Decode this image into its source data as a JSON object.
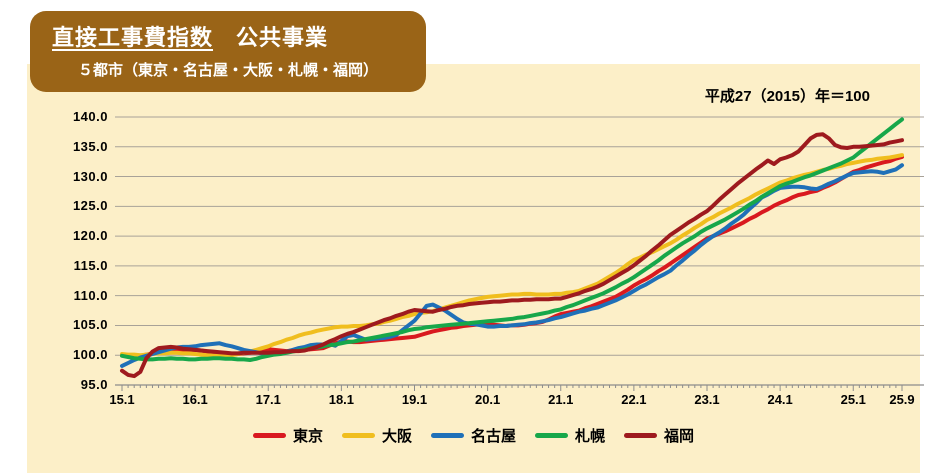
{
  "title": {
    "line1_underline": "直接工事費指数",
    "line1_rest": "　公共事業",
    "line2": "５都市（東京・名古屋・大阪・札幌・福岡）"
  },
  "note": "平成27（2015）年＝100",
  "colors": {
    "panel_background": "#fcefc8",
    "title_box": "#9a6417",
    "title_text": "#ffffff",
    "grid": "#a8a298",
    "axis": "#8c8c8c",
    "text": "#000000"
  },
  "chart_data": {
    "type": "line",
    "title": "直接工事費指数　公共事業",
    "note": "平成27（2015）年＝100",
    "ylim": [
      95,
      140
    ],
    "grid": true,
    "legend_position": "bottom",
    "y_ticks": [
      95,
      100,
      105,
      110,
      115,
      120,
      125,
      130,
      135,
      140
    ],
    "y_tick_labels": [
      "95.0",
      "100.0",
      "105.0",
      "110.0",
      "115.0",
      "120.0",
      "125.0",
      "130.0",
      "135.0",
      "140.0"
    ],
    "x_tick_labels": [
      "15.1",
      "16.1",
      "17.1",
      "18.1",
      "19.1",
      "20.1",
      "21.1",
      "22.1",
      "23.1",
      "24.1",
      "25.1",
      "25.9"
    ],
    "x_major_tick_indices": [
      0,
      12,
      24,
      36,
      48,
      60,
      72,
      84,
      96,
      108,
      120,
      128
    ],
    "n_points": 129,
    "series": [
      {
        "name": "東京",
        "color": "#d9191f",
        "values": [
          100.0,
          99.9,
          99.8,
          99.9,
          100.1,
          100.3,
          100.6,
          100.7,
          100.8,
          100.9,
          100.9,
          100.9,
          100.9,
          100.8,
          100.6,
          100.5,
          100.3,
          100.2,
          100.1,
          100.2,
          100.3,
          100.4,
          100.6,
          100.8,
          101.0,
          100.9,
          100.8,
          100.7,
          100.8,
          100.8,
          100.9,
          101.0,
          101.1,
          101.2,
          101.6,
          102.0,
          102.3,
          102.3,
          102.2,
          102.2,
          102.3,
          102.4,
          102.5,
          102.6,
          102.7,
          102.8,
          102.9,
          103.0,
          103.1,
          103.4,
          103.7,
          104.0,
          104.2,
          104.4,
          104.6,
          104.7,
          104.9,
          105.0,
          105.1,
          105.2,
          105.2,
          105.1,
          105.0,
          104.9,
          105.0,
          105.0,
          105.1,
          105.3,
          105.4,
          105.6,
          106.0,
          106.5,
          106.9,
          107.1,
          107.3,
          107.5,
          107.9,
          108.2,
          108.6,
          109.0,
          109.4,
          109.8,
          110.4,
          111.0,
          111.7,
          112.3,
          112.8,
          113.4,
          114.1,
          114.7,
          115.4,
          116.1,
          116.8,
          117.5,
          118.2,
          118.9,
          119.6,
          120.0,
          120.4,
          120.8,
          121.3,
          121.8,
          122.3,
          122.9,
          123.4,
          124.0,
          124.5,
          125.1,
          125.6,
          126.0,
          126.5,
          126.9,
          127.1,
          127.4,
          127.6,
          128.1,
          128.5,
          129.0,
          129.6,
          130.2,
          130.8,
          131.1,
          131.5,
          131.8,
          132.1,
          132.4,
          132.6,
          133.0,
          133.3
        ]
      },
      {
        "name": "大阪",
        "color": "#f0be1e",
        "values": [
          100.2,
          100.1,
          100.1,
          100.0,
          100.1,
          100.2,
          100.3,
          100.3,
          100.4,
          100.4,
          100.3,
          100.3,
          100.2,
          100.1,
          100.0,
          99.9,
          99.9,
          100.0,
          100.0,
          100.2,
          100.4,
          100.6,
          100.9,
          101.2,
          101.5,
          101.9,
          102.2,
          102.6,
          102.9,
          103.3,
          103.6,
          103.8,
          104.1,
          104.3,
          104.5,
          104.7,
          104.8,
          104.8,
          104.9,
          104.9,
          105.0,
          105.2,
          105.3,
          105.6,
          105.8,
          106.1,
          106.4,
          106.6,
          106.9,
          107.1,
          107.2,
          107.4,
          107.7,
          108.0,
          108.3,
          108.6,
          108.9,
          109.2,
          109.4,
          109.6,
          109.8,
          109.9,
          110.0,
          110.1,
          110.2,
          110.2,
          110.3,
          110.3,
          110.2,
          110.2,
          110.2,
          110.3,
          110.3,
          110.5,
          110.6,
          110.8,
          111.2,
          111.6,
          112.0,
          112.6,
          113.2,
          113.8,
          114.5,
          115.3,
          116.0,
          116.4,
          116.9,
          117.3,
          117.8,
          118.3,
          118.8,
          119.4,
          120.1,
          120.7,
          121.4,
          122.0,
          122.7,
          123.2,
          123.8,
          124.3,
          124.8,
          125.4,
          125.9,
          126.4,
          127.0,
          127.5,
          128.0,
          128.5,
          129.0,
          129.3,
          129.7,
          130.0,
          130.3,
          130.5,
          130.8,
          131.1,
          131.3,
          131.6,
          131.8,
          132.1,
          132.3,
          132.5,
          132.7,
          132.8,
          133.0,
          133.1,
          133.2,
          133.4,
          133.6
        ]
      },
      {
        "name": "名古屋",
        "color": "#1f70b8",
        "values": [
          98.2,
          98.7,
          99.2,
          99.6,
          99.9,
          100.2,
          100.5,
          100.8,
          101.1,
          101.3,
          101.4,
          101.4,
          101.5,
          101.7,
          101.8,
          101.9,
          102.0,
          101.7,
          101.5,
          101.2,
          100.9,
          100.7,
          100.5,
          100.3,
          100.2,
          100.3,
          100.5,
          100.6,
          100.9,
          101.2,
          101.4,
          101.7,
          101.8,
          101.8,
          101.9,
          101.6,
          102.4,
          103.2,
          103.4,
          103.0,
          102.6,
          102.7,
          102.8,
          102.9,
          103.1,
          103.4,
          104.2,
          105.0,
          105.8,
          107.0,
          108.3,
          108.5,
          108.0,
          107.5,
          106.8,
          106.1,
          105.5,
          105.3,
          105.2,
          105.0,
          104.8,
          104.8,
          104.9,
          104.9,
          105.0,
          105.1,
          105.2,
          105.4,
          105.5,
          105.7,
          105.9,
          106.2,
          106.4,
          106.7,
          107.0,
          107.3,
          107.5,
          107.8,
          108.0,
          108.4,
          108.8,
          109.2,
          109.7,
          110.2,
          110.8,
          111.4,
          111.9,
          112.5,
          113.1,
          113.6,
          114.2,
          115.1,
          115.9,
          116.8,
          117.6,
          118.5,
          119.3,
          120.0,
          120.6,
          121.3,
          122.1,
          122.8,
          123.6,
          124.6,
          125.5,
          126.5,
          127.0,
          127.6,
          128.1,
          128.2,
          128.3,
          128.3,
          128.2,
          128.0,
          127.9,
          128.3,
          128.8,
          129.2,
          129.7,
          130.2,
          130.6,
          130.7,
          130.8,
          130.9,
          130.8,
          130.6,
          130.9,
          131.2,
          131.9
        ]
      },
      {
        "name": "札幌",
        "color": "#17a74a",
        "values": [
          99.9,
          99.7,
          99.5,
          99.4,
          99.3,
          99.3,
          99.4,
          99.4,
          99.5,
          99.4,
          99.4,
          99.3,
          99.3,
          99.4,
          99.4,
          99.5,
          99.5,
          99.4,
          99.4,
          99.3,
          99.3,
          99.2,
          99.4,
          99.7,
          99.9,
          100.1,
          100.2,
          100.4,
          100.6,
          100.8,
          101.0,
          101.2,
          101.3,
          101.5,
          101.7,
          101.8,
          102.0,
          102.2,
          102.3,
          102.5,
          102.7,
          102.9,
          103.1,
          103.3,
          103.5,
          103.7,
          103.9,
          104.2,
          104.4,
          104.5,
          104.7,
          104.8,
          104.9,
          105.0,
          105.1,
          105.2,
          105.3,
          105.4,
          105.5,
          105.6,
          105.7,
          105.8,
          105.9,
          106.0,
          106.1,
          106.3,
          106.4,
          106.6,
          106.8,
          107.0,
          107.2,
          107.5,
          107.7,
          108.1,
          108.4,
          108.8,
          109.2,
          109.6,
          110.0,
          110.4,
          110.9,
          111.4,
          112.0,
          112.5,
          113.1,
          113.8,
          114.5,
          115.2,
          115.9,
          116.7,
          117.4,
          118.1,
          118.8,
          119.4,
          120.0,
          120.7,
          121.3,
          121.8,
          122.3,
          122.8,
          123.4,
          124.0,
          124.6,
          125.3,
          125.9,
          126.6,
          127.2,
          127.8,
          128.4,
          128.8,
          129.1,
          129.5,
          129.9,
          130.2,
          130.6,
          131.0,
          131.4,
          131.8,
          132.2,
          132.7,
          133.2,
          134.0,
          134.8,
          135.6,
          136.4,
          137.2,
          138.0,
          138.8,
          139.6
        ]
      },
      {
        "name": "福岡",
        "color": "#9e1a1e",
        "values": [
          97.4,
          96.7,
          96.5,
          97.2,
          99.5,
          100.6,
          101.2,
          101.3,
          101.4,
          101.3,
          101.1,
          101.0,
          100.9,
          100.8,
          100.7,
          100.6,
          100.5,
          100.4,
          100.3,
          100.3,
          100.4,
          100.4,
          100.4,
          100.4,
          100.4,
          100.5,
          100.5,
          100.6,
          100.7,
          100.7,
          100.8,
          101.1,
          101.4,
          101.8,
          102.3,
          102.7,
          103.2,
          103.6,
          103.9,
          104.3,
          104.7,
          105.1,
          105.5,
          105.9,
          106.2,
          106.6,
          106.9,
          107.3,
          107.6,
          107.5,
          107.4,
          107.3,
          107.6,
          107.8,
          108.1,
          108.3,
          108.4,
          108.6,
          108.7,
          108.8,
          108.9,
          109.0,
          109.0,
          109.1,
          109.2,
          109.2,
          109.3,
          109.3,
          109.4,
          109.4,
          109.4,
          109.5,
          109.5,
          109.8,
          110.1,
          110.4,
          110.8,
          111.1,
          111.5,
          112.0,
          112.6,
          113.2,
          113.8,
          114.4,
          115.1,
          115.9,
          116.7,
          117.6,
          118.4,
          119.3,
          120.2,
          120.9,
          121.6,
          122.3,
          122.9,
          123.6,
          124.2,
          125.1,
          126.1,
          127.0,
          127.9,
          128.8,
          129.6,
          130.4,
          131.2,
          131.9,
          132.7,
          132.1,
          132.9,
          133.2,
          133.6,
          134.2,
          135.3,
          136.4,
          137.0,
          137.1,
          136.4,
          135.3,
          134.9,
          134.8,
          135.0,
          135.0,
          135.1,
          135.2,
          135.3,
          135.4,
          135.7,
          135.9,
          136.1
        ]
      }
    ]
  }
}
